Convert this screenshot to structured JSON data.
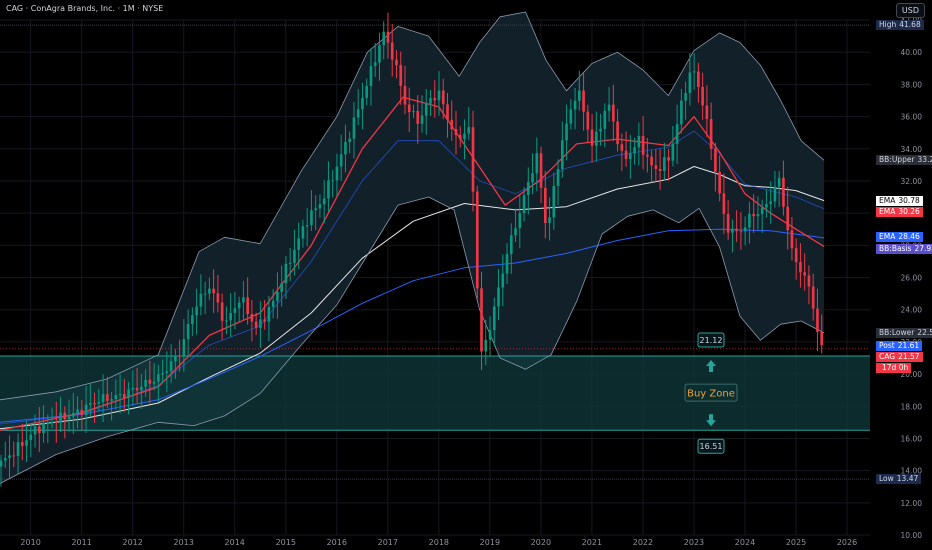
{
  "header": {
    "title": "CAG · ConAgra Brands, Inc. · 1M · NYSE",
    "currency": "USD"
  },
  "colors": {
    "background": "#000000",
    "grid": "#15181f",
    "up": "#089981",
    "down": "#f23645",
    "ema_fast": "#f23645",
    "ema_slow": "#e6e6e6",
    "bb_basis": "#2962ff",
    "bb_band": "#8a9ab0",
    "bb_fill": "#13222c",
    "buy_zone_fill": "#0f3a3c",
    "buy_zone_border": "#26a69a",
    "zone_text": "#f0a030"
  },
  "right_tags": [
    {
      "name": "High",
      "value": "41.68",
      "price": 41.68,
      "bg": "#1e2a4a",
      "fg": "#cfd6ea"
    },
    {
      "name": "BB:Upper",
      "value": "33.28",
      "price": 33.28,
      "bg": "#2a2e39",
      "fg": "#d1d4dc"
    },
    {
      "name": "EMA",
      "value": "30.78",
      "price": 30.78,
      "bg": "#ffffff",
      "fg": "#000000"
    },
    {
      "name": "EMA",
      "value": "30.26",
      "price": 30.06,
      "bg": "#f23645",
      "fg": "#ffffff"
    },
    {
      "name": "EMA",
      "value": "28.46",
      "price": 28.52,
      "bg": "#2962ff",
      "fg": "#ffffff"
    },
    {
      "name": "BB:Basis",
      "value": "27.92",
      "price": 27.78,
      "bg": "#5b4ec8",
      "fg": "#ffffff"
    },
    {
      "name": "BB:Lower",
      "value": "22.56",
      "price": 22.56,
      "bg": "#2a2e39",
      "fg": "#d1d4dc"
    },
    {
      "name": "Post",
      "value": "21.61",
      "price": 21.72,
      "bg": "#2962ff",
      "fg": "#ffffff"
    },
    {
      "name": "CAG",
      "value": "21.57",
      "price": 21.05,
      "bg": "#f23645",
      "fg": "#ffffff"
    },
    {
      "name": "",
      "value": "17d 0h",
      "price": 20.35,
      "bg": "#f23645",
      "fg": "#ffffff"
    },
    {
      "name": "Low",
      "value": "13.47",
      "price": 13.47,
      "bg": "#1e2a4a",
      "fg": "#cfd6ea"
    }
  ],
  "annotations": {
    "zone_label": "Buy Zone",
    "zone_top_label": "21.12",
    "zone_bottom_label": "16.51"
  },
  "chart_data": {
    "type": "candlestick",
    "title": "CAG · ConAgra Brands, Inc. · 1M · NYSE",
    "ylim": [
      10,
      42
    ],
    "yticks": [
      10,
      12,
      14,
      16,
      18,
      20,
      22,
      24,
      26,
      28,
      30,
      32,
      34,
      36,
      38,
      40,
      42
    ],
    "ytick_labels": [
      "10.00",
      "12.00",
      "14.00",
      "16.00",
      "18.00",
      "20.00",
      "22.00",
      "24.00",
      "26.00",
      "28.00",
      "30.00",
      "32.00",
      "34.00",
      "36.00",
      "38.00",
      "40.00",
      "42.00"
    ],
    "xlim": [
      2009.4,
      2026.45
    ],
    "xticks": [
      2010,
      2011,
      2012,
      2013,
      2014,
      2015,
      2016,
      2017,
      2018,
      2019,
      2020,
      2021,
      2022,
      2023,
      2024,
      2025,
      2026
    ],
    "xtick_labels": [
      "2010",
      "2011",
      "2012",
      "2013",
      "2014",
      "2015",
      "2016",
      "2017",
      "2018",
      "2019",
      "2020",
      "2021",
      "2022",
      "2023",
      "2024",
      "2025",
      "2026"
    ],
    "high_line": 41.68,
    "low_line": 13.47,
    "buy_zone": {
      "top": 21.12,
      "bottom": 16.51,
      "label": "Buy Zone"
    },
    "price_path": [
      [
        2009.4,
        14.2
      ],
      [
        2009.8,
        15.3
      ],
      [
        2010.2,
        16.6
      ],
      [
        2010.6,
        17.2
      ],
      [
        2011.0,
        17.6
      ],
      [
        2011.4,
        18.4
      ],
      [
        2011.8,
        18.6
      ],
      [
        2012.2,
        19.2
      ],
      [
        2012.6,
        19.8
      ],
      [
        2013.0,
        21.3
      ],
      [
        2013.3,
        24.2
      ],
      [
        2013.6,
        25.5
      ],
      [
        2013.9,
        23.1
      ],
      [
        2014.2,
        24.8
      ],
      [
        2014.5,
        22.8
      ],
      [
        2014.8,
        24.2
      ],
      [
        2015.1,
        26.6
      ],
      [
        2015.5,
        29.6
      ],
      [
        2015.8,
        30.8
      ],
      [
        2016.1,
        33.0
      ],
      [
        2016.4,
        35.5
      ],
      [
        2016.7,
        38.3
      ],
      [
        2017.0,
        41.2
      ],
      [
        2017.2,
        39.6
      ],
      [
        2017.45,
        36.5
      ],
      [
        2017.7,
        35.7
      ],
      [
        2017.9,
        37.1
      ],
      [
        2018.1,
        37.4
      ],
      [
        2018.4,
        34.6
      ],
      [
        2018.7,
        35.2
      ],
      [
        2018.9,
        21.0
      ],
      [
        2019.1,
        23.1
      ],
      [
        2019.4,
        27.3
      ],
      [
        2019.7,
        30.4
      ],
      [
        2020.0,
        33.6
      ],
      [
        2020.2,
        28.8
      ],
      [
        2020.5,
        34.5
      ],
      [
        2020.8,
        37.8
      ],
      [
        2021.1,
        34.1
      ],
      [
        2021.4,
        36.9
      ],
      [
        2021.7,
        33.2
      ],
      [
        2022.0,
        34.5
      ],
      [
        2022.3,
        32.6
      ],
      [
        2022.6,
        33.4
      ],
      [
        2022.9,
        37.6
      ],
      [
        2023.05,
        39.1
      ],
      [
        2023.25,
        37.0
      ],
      [
        2023.45,
        33.6
      ],
      [
        2023.7,
        29.2
      ],
      [
        2023.95,
        28.7
      ],
      [
        2024.2,
        29.8
      ],
      [
        2024.5,
        30.4
      ],
      [
        2024.75,
        32.1
      ],
      [
        2025.0,
        27.6
      ],
      [
        2025.2,
        26.3
      ],
      [
        2025.38,
        25.1
      ],
      [
        2025.55,
        21.6
      ]
    ],
    "series": [
      {
        "name": "EMA",
        "value_label": "30.78",
        "values": [
          [
            2009.4,
            16.6
          ],
          [
            2011,
            17.2
          ],
          [
            2012.5,
            18.2
          ],
          [
            2013.5,
            19.8
          ],
          [
            2014.5,
            21.3
          ],
          [
            2015.5,
            23.8
          ],
          [
            2016.5,
            27.2
          ],
          [
            2017.5,
            29.5
          ],
          [
            2018.5,
            30.6
          ],
          [
            2019.5,
            30.2
          ],
          [
            2020.5,
            30.4
          ],
          [
            2021.5,
            31.5
          ],
          [
            2022.5,
            32.1
          ],
          [
            2023.0,
            32.9
          ],
          [
            2023.5,
            32.4
          ],
          [
            2024.0,
            31.7
          ],
          [
            2024.5,
            31.6
          ],
          [
            2025.0,
            31.4
          ],
          [
            2025.55,
            30.78
          ]
        ]
      },
      {
        "name": "EMA",
        "value_label": "30.26",
        "values": [
          [
            2009.4,
            16.9
          ],
          [
            2011,
            17.5
          ],
          [
            2012.5,
            19.3
          ],
          [
            2013.5,
            21.8
          ],
          [
            2014.5,
            23.0
          ],
          [
            2015.5,
            27.0
          ],
          [
            2016.5,
            32.0
          ],
          [
            2017.2,
            34.5
          ],
          [
            2018.0,
            34.5
          ],
          [
            2018.8,
            32.0
          ],
          [
            2019.5,
            31.2
          ],
          [
            2020.5,
            32.8
          ],
          [
            2021.5,
            33.6
          ],
          [
            2022.5,
            34.1
          ],
          [
            2023.0,
            35.1
          ],
          [
            2023.5,
            33.7
          ],
          [
            2024.0,
            31.8
          ],
          [
            2024.5,
            31.4
          ],
          [
            2025.0,
            31.0
          ],
          [
            2025.55,
            30.26
          ]
        ]
      },
      {
        "name": "EMA",
        "value_label": "28.46",
        "values": [
          [
            2009.4,
            17.0
          ],
          [
            2011,
            17.5
          ],
          [
            2012.5,
            18.4
          ],
          [
            2013.5,
            19.7
          ],
          [
            2014.5,
            21.1
          ],
          [
            2015.5,
            22.7
          ],
          [
            2016.5,
            24.4
          ],
          [
            2017.5,
            25.8
          ],
          [
            2018.5,
            26.6
          ],
          [
            2019.5,
            26.9
          ],
          [
            2020.5,
            27.5
          ],
          [
            2021.5,
            28.3
          ],
          [
            2022.5,
            28.9
          ],
          [
            2023.5,
            29.0
          ],
          [
            2024.5,
            28.9
          ],
          [
            2025.55,
            28.46
          ]
        ]
      },
      {
        "name": "BB:Basis",
        "value_label": "27.92",
        "values": [
          [
            2009.4,
            16.5
          ],
          [
            2011,
            17.6
          ],
          [
            2012.5,
            19.2
          ],
          [
            2013.5,
            22.4
          ],
          [
            2014.5,
            23.8
          ],
          [
            2015.5,
            28.0
          ],
          [
            2016.5,
            34.0
          ],
          [
            2017.3,
            37.2
          ],
          [
            2018.0,
            36.6
          ],
          [
            2018.6,
            33.8
          ],
          [
            2019.3,
            30.5
          ],
          [
            2020.0,
            32.1
          ],
          [
            2020.7,
            34.3
          ],
          [
            2021.5,
            34.6
          ],
          [
            2022.5,
            34.2
          ],
          [
            2023.0,
            36.0
          ],
          [
            2023.5,
            33.8
          ],
          [
            2024.0,
            31.2
          ],
          [
            2024.5,
            30.0
          ],
          [
            2025.0,
            29.0
          ],
          [
            2025.55,
            27.92
          ]
        ]
      },
      {
        "name": "BB:Upper",
        "value_label": "33.28",
        "values": [
          [
            2009.4,
            18.4
          ],
          [
            2010.5,
            18.9
          ],
          [
            2011.5,
            19.7
          ],
          [
            2012.5,
            21.2
          ],
          [
            2013.3,
            27.6
          ],
          [
            2013.8,
            28.5
          ],
          [
            2014.5,
            28.1
          ],
          [
            2015.3,
            32.6
          ],
          [
            2016.0,
            36.0
          ],
          [
            2016.6,
            40.0
          ],
          [
            2017.2,
            41.6
          ],
          [
            2017.8,
            41.0
          ],
          [
            2018.4,
            38.5
          ],
          [
            2018.8,
            40.6
          ],
          [
            2019.2,
            42.2
          ],
          [
            2019.7,
            42.5
          ],
          [
            2020.1,
            39.5
          ],
          [
            2020.5,
            37.6
          ],
          [
            2021.0,
            39.3
          ],
          [
            2021.5,
            40.0
          ],
          [
            2022.0,
            38.9
          ],
          [
            2022.5,
            37.3
          ],
          [
            2023.0,
            40.1
          ],
          [
            2023.5,
            41.2
          ],
          [
            2023.9,
            40.6
          ],
          [
            2024.3,
            39.2
          ],
          [
            2024.7,
            37.0
          ],
          [
            2025.1,
            34.5
          ],
          [
            2025.55,
            33.28
          ]
        ]
      },
      {
        "name": "BB:Lower",
        "value_label": "22.56",
        "values": [
          [
            2009.4,
            13.2
          ],
          [
            2010.5,
            15.0
          ],
          [
            2011.5,
            16.1
          ],
          [
            2012.5,
            17.0
          ],
          [
            2013.2,
            16.8
          ],
          [
            2013.8,
            17.4
          ],
          [
            2014.5,
            18.8
          ],
          [
            2015.3,
            21.8
          ],
          [
            2016.0,
            24.3
          ],
          [
            2016.6,
            27.4
          ],
          [
            2017.2,
            30.5
          ],
          [
            2017.8,
            31.0
          ],
          [
            2018.3,
            30.2
          ],
          [
            2018.8,
            24.0
          ],
          [
            2019.2,
            21.0
          ],
          [
            2019.7,
            20.3
          ],
          [
            2020.2,
            21.2
          ],
          [
            2020.7,
            24.5
          ],
          [
            2021.2,
            28.7
          ],
          [
            2021.7,
            29.8
          ],
          [
            2022.2,
            30.2
          ],
          [
            2022.7,
            29.4
          ],
          [
            2023.1,
            30.3
          ],
          [
            2023.5,
            27.9
          ],
          [
            2023.9,
            23.6
          ],
          [
            2024.3,
            22.1
          ],
          [
            2024.7,
            23.1
          ],
          [
            2025.1,
            23.3
          ],
          [
            2025.55,
            22.56
          ]
        ]
      }
    ]
  }
}
